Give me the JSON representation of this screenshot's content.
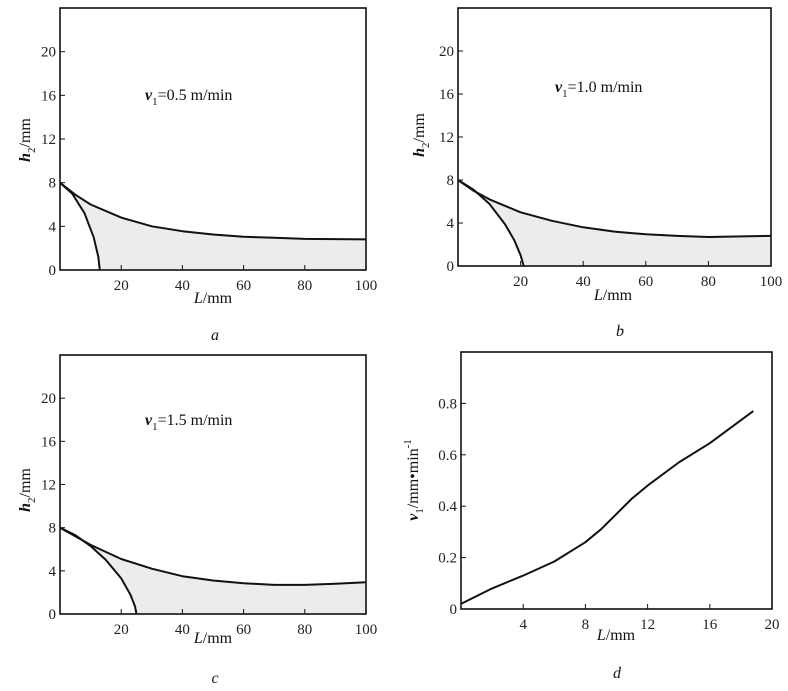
{
  "chart_data": [
    {
      "id": "a",
      "type": "line",
      "caption": "a",
      "annotation": {
        "var": "v",
        "sub": "1",
        "text": "=0.5 m/min"
      },
      "xlabel": {
        "var": "L",
        "unit": "/mm"
      },
      "ylabel": {
        "var": "h",
        "sub": "2",
        "unit": "/mm"
      },
      "xlim": [
        0,
        100
      ],
      "ylim": [
        0,
        24
      ],
      "xticks": [
        "20",
        "40",
        "60",
        "80",
        "100"
      ],
      "xtick_values": [
        20,
        40,
        60,
        80,
        100
      ],
      "yticks": [
        "0",
        "4",
        "8",
        "12",
        "16",
        "20"
      ],
      "ytick_values": [
        0,
        4,
        8,
        12,
        16,
        20
      ],
      "series": [
        {
          "name": "upper",
          "x": [
            0,
            5,
            10,
            20,
            30,
            40,
            50,
            60,
            70,
            80,
            100
          ],
          "y": [
            8,
            6.9,
            6.0,
            4.8,
            4.0,
            3.55,
            3.25,
            3.05,
            2.95,
            2.85,
            2.8
          ]
        },
        {
          "name": "lower",
          "x": [
            0,
            4,
            8,
            11,
            12.5,
            13
          ],
          "y": [
            8,
            7.0,
            5.2,
            3.0,
            1.2,
            0
          ]
        }
      ],
      "shaded_region": true
    },
    {
      "id": "b",
      "type": "line",
      "caption": "b",
      "annotation": {
        "var": "v",
        "sub": "1",
        "text": "=1.0 m/min"
      },
      "xlabel": {
        "var": "L",
        "unit": "/mm"
      },
      "ylabel": {
        "var": "h",
        "sub": "2",
        "unit": "/mm"
      },
      "xlim": [
        0,
        100
      ],
      "ylim": [
        0,
        24
      ],
      "xticks": [
        "20",
        "40",
        "60",
        "80",
        "100"
      ],
      "xtick_values": [
        20,
        40,
        60,
        80,
        100
      ],
      "yticks": [
        "0",
        "4",
        "8",
        "12",
        "16",
        "20"
      ],
      "ytick_values": [
        0,
        4,
        8,
        12,
        16,
        20
      ],
      "series": [
        {
          "name": "upper",
          "x": [
            0,
            5,
            10,
            20,
            30,
            40,
            50,
            60,
            70,
            80,
            100
          ],
          "y": [
            8,
            7.0,
            6.2,
            5.0,
            4.2,
            3.6,
            3.2,
            2.95,
            2.8,
            2.7,
            2.8
          ]
        },
        {
          "name": "lower",
          "x": [
            0,
            5,
            10,
            15,
            18,
            20,
            21
          ],
          "y": [
            8,
            7.1,
            5.8,
            3.9,
            2.4,
            1.0,
            0
          ]
        }
      ],
      "shaded_region": true
    },
    {
      "id": "c",
      "type": "line",
      "caption": "c",
      "annotation": {
        "var": "v",
        "sub": "1",
        "text": "=1.5 m/min"
      },
      "xlabel": {
        "var": "L",
        "unit": "/mm"
      },
      "ylabel": {
        "var": "h",
        "sub": "2",
        "unit": "/mm"
      },
      "xlim": [
        0,
        100
      ],
      "ylim": [
        0,
        24
      ],
      "xticks": [
        "20",
        "40",
        "60",
        "80",
        "100"
      ],
      "xtick_values": [
        20,
        40,
        60,
        80,
        100
      ],
      "yticks": [
        "0",
        "4",
        "8",
        "12",
        "16",
        "20"
      ],
      "ytick_values": [
        0,
        4,
        8,
        12,
        16,
        20
      ],
      "series": [
        {
          "name": "upper",
          "x": [
            0,
            5,
            10,
            20,
            30,
            40,
            50,
            60,
            70,
            80,
            90,
            100
          ],
          "y": [
            8,
            7.2,
            6.4,
            5.1,
            4.2,
            3.5,
            3.1,
            2.85,
            2.7,
            2.7,
            2.8,
            2.95
          ]
        },
        {
          "name": "lower",
          "x": [
            0,
            5,
            10,
            15,
            20,
            23,
            24.5,
            25
          ],
          "y": [
            8,
            7.3,
            6.3,
            5.0,
            3.3,
            1.8,
            0.7,
            0
          ]
        }
      ],
      "shaded_region": true
    },
    {
      "id": "d",
      "type": "line",
      "caption": "d",
      "xlabel": {
        "var": "L",
        "unit": "/mm"
      },
      "ylabel": {
        "var": "v",
        "sub": "1",
        "unit": "/mm•min",
        "sup": "-1"
      },
      "xlim": [
        0,
        20
      ],
      "ylim": [
        0,
        1.0
      ],
      "xticks": [
        "4",
        "8",
        "12",
        "16",
        "20"
      ],
      "xtick_values": [
        4,
        8,
        12,
        16,
        20
      ],
      "yticks": [
        "0",
        "0.2",
        "0.4",
        "0.6",
        "0.8"
      ],
      "ytick_values": [
        0,
        0.2,
        0.4,
        0.6,
        0.8
      ],
      "series": [
        {
          "name": "v1",
          "x": [
            0,
            2,
            4,
            6,
            8,
            9,
            10,
            11,
            12,
            14,
            16,
            18.8
          ],
          "y": [
            0.02,
            0.08,
            0.13,
            0.185,
            0.26,
            0.31,
            0.37,
            0.43,
            0.48,
            0.57,
            0.645,
            0.77
          ]
        }
      ],
      "shaded_region": false
    }
  ]
}
